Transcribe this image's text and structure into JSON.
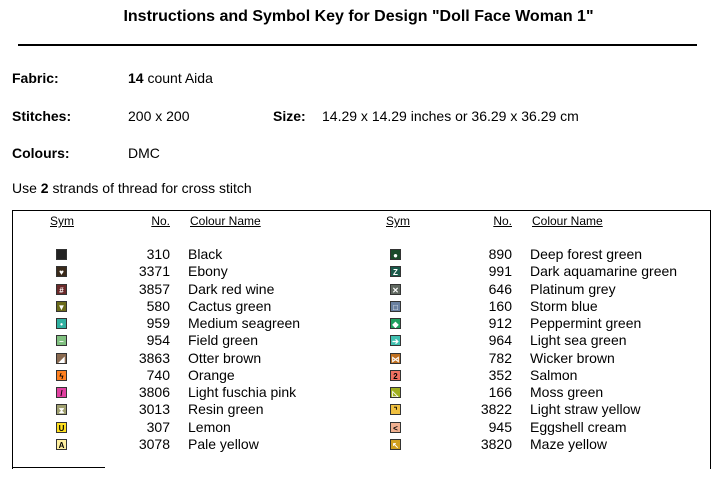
{
  "header": {
    "title": "Instructions and Symbol Key for Design \"Doll Face Woman 1\""
  },
  "fabric": {
    "label": "Fabric:",
    "count": "14",
    "rest": "count Aida"
  },
  "stitches": {
    "label": "Stitches:",
    "value": "200 x 200"
  },
  "size": {
    "label": "Size:",
    "value": "14.29 x 14.29 inches or 36.29 x 36.29 cm"
  },
  "colours": {
    "label": "Colours:",
    "value": "DMC"
  },
  "instruction": {
    "before": "Use",
    "strands": "2",
    "after": "strands of thread for cross stitch"
  },
  "table": {
    "headers": [
      "Sym",
      "No.",
      "Colour Name"
    ],
    "columns": [
      [
        {
          "color": "#222222",
          "number": "310",
          "name": "Black"
        },
        {
          "color": "#3a2a1a",
          "glyph": "♥",
          "number": "3371",
          "name": "Ebony"
        },
        {
          "color": "#6b2a2a",
          "glyph": "#",
          "number": "3857",
          "name": "Dark red wine"
        },
        {
          "color": "#6b6b1a",
          "glyph": "▼",
          "number": "580",
          "name": "Cactus green"
        },
        {
          "color": "#30b0a0",
          "glyph": "•",
          "number": "959",
          "name": "Medium seagreen"
        },
        {
          "color": "#80c080",
          "glyph": "–",
          "number": "954",
          "name": "Field green"
        },
        {
          "color": "#8a6a50",
          "glyph": "◢",
          "number": "3863",
          "name": "Otter brown"
        },
        {
          "color": "#ff8020",
          "glyph": "ϟ",
          "number": "740",
          "name": "Orange"
        },
        {
          "color": "#e040a0",
          "glyph": "/",
          "number": "3806",
          "name": "Light fuschia pink"
        },
        {
          "color": "#a0a070",
          "glyph": "⧗",
          "number": "3013",
          "name": "Resin green"
        },
        {
          "color": "#ffe020",
          "glyph": "U",
          "number": "307",
          "name": "Lemon"
        },
        {
          "color": "#fff0a0",
          "glyph": "A",
          "number": "3078",
          "name": "Pale yellow"
        }
      ],
      [
        {
          "color": "#1a4a2a",
          "glyph": "●",
          "number": "890",
          "name": "Deep forest green"
        },
        {
          "color": "#1a5a4a",
          "glyph": "Z",
          "number": "991",
          "name": "Dark aquamarine green"
        },
        {
          "color": "#606860",
          "glyph": "✕",
          "number": "646",
          "name": "Platinum grey"
        },
        {
          "color": "#6a80a0",
          "glyph": "□",
          "number": "160",
          "name": "Storm blue"
        },
        {
          "color": "#20a060",
          "glyph": "◆",
          "number": "912",
          "name": "Peppermint green"
        },
        {
          "color": "#40c0b0",
          "glyph": "➔",
          "number": "964",
          "name": "Light sea green"
        },
        {
          "color": "#c07020",
          "glyph": "⋈",
          "number": "782",
          "name": "Wicker brown"
        },
        {
          "color": "#f07060",
          "glyph": "2",
          "number": "352",
          "name": "Salmon"
        },
        {
          "color": "#a0b020",
          "glyph": "◺",
          "number": "166",
          "name": "Moss green"
        },
        {
          "color": "#f0c040",
          "glyph": "⌝",
          "number": "3822",
          "name": "Light straw yellow"
        },
        {
          "color": "#f0b090",
          "glyph": "<",
          "number": "945",
          "name": "Eggshell cream"
        },
        {
          "color": "#d0a020",
          "glyph": "↖",
          "number": "3820",
          "name": "Maze yellow"
        }
      ]
    ]
  }
}
